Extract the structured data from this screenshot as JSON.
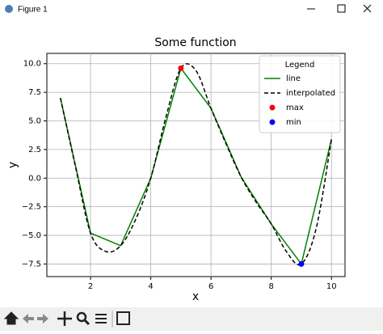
{
  "window": {
    "title": "Figure 1"
  },
  "chart_data": {
    "type": "line",
    "title": "Some function",
    "x_label": "x",
    "y_label": "y",
    "xlim": [
      0.55,
      10.45
    ],
    "ylim": [
      -8.6,
      10.9
    ],
    "xticks": [
      2,
      4,
      6,
      8,
      10
    ],
    "yticks": [
      {
        "value": 10,
        "label": "10.0"
      },
      7.5,
      {
        "value": 5,
        "label": "5.0"
      },
      2.5,
      {
        "value": 0,
        "label": "0.0"
      },
      {
        "value": -2.5,
        "label": "−2.5"
      },
      {
        "value": -5,
        "label": "−5.0"
      },
      {
        "value": -7.5,
        "label": "−7.5"
      }
    ],
    "grid": true,
    "legend": {
      "title": "Legend",
      "position": "upper right"
    },
    "series": [
      {
        "name": "line",
        "color": "#008000",
        "style": "solid",
        "x": [
          1,
          2,
          3,
          4,
          5,
          6,
          7,
          8,
          9,
          10
        ],
        "values": [
          7.0,
          -4.8,
          -5.9,
          0.0,
          9.6,
          6.1,
          0.1,
          -4.0,
          -7.5,
          3.4
        ]
      },
      {
        "name": "interpolated",
        "color": "#000000",
        "style": "dashed",
        "x": [
          1,
          1.5,
          2,
          2.5,
          3,
          3.5,
          4,
          4.5,
          5,
          5.5,
          6,
          6.5,
          7,
          7.5,
          8,
          8.5,
          9,
          9.5,
          10
        ],
        "values": [
          7.0,
          1.0,
          -4.8,
          -6.4,
          -5.9,
          -3.6,
          0.0,
          5.3,
          9.6,
          9.4,
          6.1,
          3.0,
          0.1,
          -2.1,
          -4.0,
          -6.4,
          -7.5,
          -4.3,
          3.4
        ]
      },
      {
        "name": "max",
        "color": "#ff0000",
        "style": "marker",
        "x": [
          5
        ],
        "values": [
          9.6
        ]
      },
      {
        "name": "min",
        "color": "#0000ff",
        "style": "marker",
        "x": [
          9
        ],
        "values": [
          -7.5
        ]
      }
    ]
  }
}
